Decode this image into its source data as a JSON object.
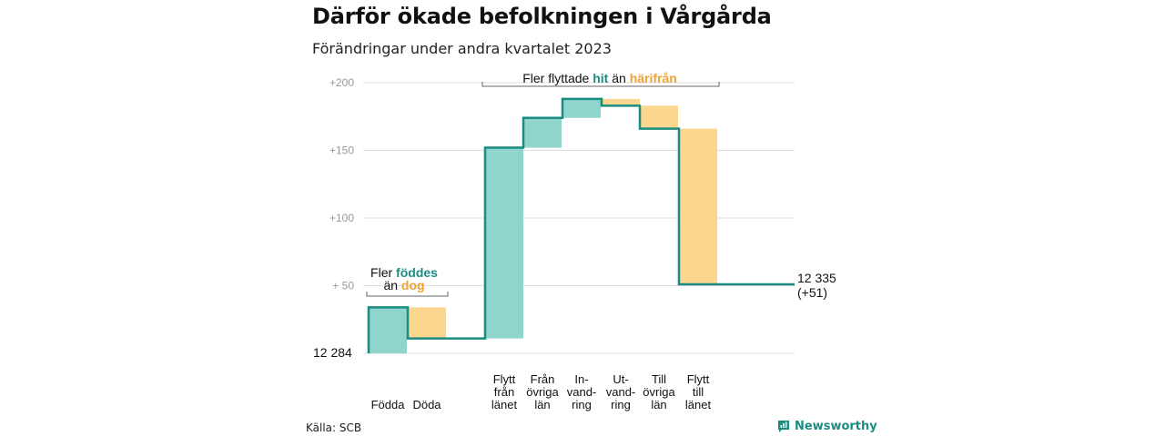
{
  "title": "Därför ökade befolkningen i Vårgårda",
  "subtitle": "Förändringar under andra kvartalet 2023",
  "source": "Källa: SCB",
  "logo": {
    "icon": "bar-chart-logo-icon",
    "text": "Newsworthy"
  },
  "colors": {
    "increase": "#8fd5cc",
    "decrease": "#fbd68e",
    "step_line": "#1a8c82",
    "accent_teal": "#1a8c82",
    "accent_orange": "#f0a232",
    "grid": "#dddddd"
  },
  "chart_data": {
    "type": "waterfall",
    "start_label": "12  284",
    "start_value": 12284,
    "end_label": "12 335",
    "end_change_label": "(+51)",
    "end_value": 12335,
    "yticks": [
      {
        "value": 50,
        "label": "+  50"
      },
      {
        "value": 100,
        "label": "+100"
      },
      {
        "value": 150,
        "label": "+150"
      },
      {
        "value": 200,
        "label": "+200"
      }
    ],
    "ylim": [
      0,
      200
    ],
    "steps": [
      {
        "label_lines": [
          "Födda"
        ],
        "from": 0,
        "to": 34
      },
      {
        "label_lines": [
          "Döda"
        ],
        "from": 34,
        "to": 11
      },
      {
        "label_lines": [
          "Flytt",
          "från",
          "länet"
        ],
        "from": 11,
        "to": 152
      },
      {
        "label_lines": [
          "Från",
          "övriga",
          "län"
        ],
        "from": 152,
        "to": 174
      },
      {
        "label_lines": [
          "In-",
          "vand-",
          "ring"
        ],
        "from": 174,
        "to": 188
      },
      {
        "label_lines": [
          "Ut-",
          "vand-",
          "ring"
        ],
        "from": 188,
        "to": 183
      },
      {
        "label_lines": [
          "Till",
          "övriga",
          "län"
        ],
        "from": 183,
        "to": 166
      },
      {
        "label_lines": [
          "Flytt",
          "till",
          "länet"
        ],
        "from": 166,
        "to": 51
      }
    ],
    "annotations": [
      {
        "parts": [
          "Fler ",
          "föddes"
        ],
        "line2": [
          "än ",
          "dog"
        ]
      },
      {
        "parts": [
          "Fler flyttade ",
          "hit",
          "  än ",
          "härifrån"
        ]
      }
    ]
  }
}
